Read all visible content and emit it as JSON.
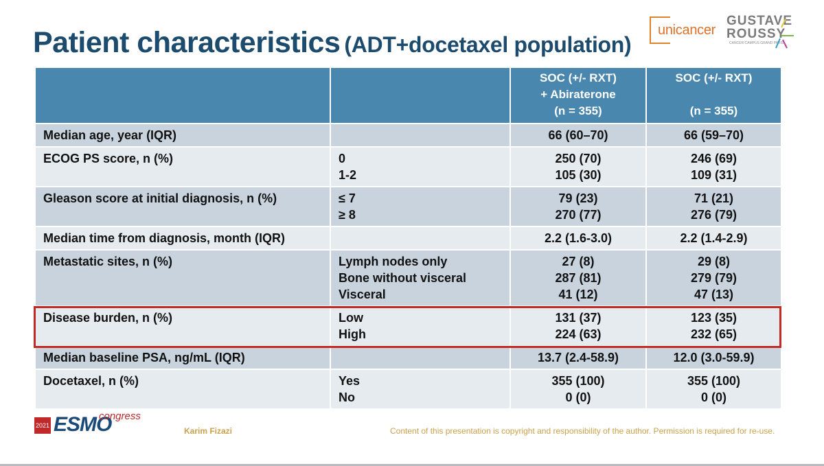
{
  "title": {
    "main": "Patient characteristics",
    "sub": "(ADT+docetaxel population)"
  },
  "logos": {
    "unicancer": "unicancer",
    "gustave_roussy_line1": "GUSTAVE",
    "gustave_roussy_line2": "ROUSSY",
    "gustave_roussy_line3": "CANCER CAMPUS GRAND PARIS"
  },
  "table": {
    "headers": [
      [],
      [],
      [
        "SOC (+/- RXT)",
        "+ Abiraterone",
        "(n = 355)"
      ],
      [
        "SOC (+/- RXT)",
        "",
        "(n = 355)"
      ]
    ],
    "rows": [
      {
        "label": "Median age, year (IQR)",
        "sub": [
          ""
        ],
        "arm1": [
          "66 (60–70)"
        ],
        "arm2": [
          "66 (59–70)"
        ]
      },
      {
        "label": "ECOG PS score, n (%)",
        "sub": [
          "0",
          "1-2"
        ],
        "arm1": [
          "250 (70)",
          "105 (30)"
        ],
        "arm2": [
          "246 (69)",
          "109 (31)"
        ]
      },
      {
        "label": "Gleason score at initial diagnosis, n (%)",
        "sub": [
          "≤ 7",
          "≥ 8"
        ],
        "arm1": [
          "79 (23)",
          "270 (77)"
        ],
        "arm2": [
          "71 (21)",
          "276 (79)"
        ]
      },
      {
        "label": "Median time from diagnosis, month (IQR)",
        "sub": [
          ""
        ],
        "arm1": [
          "2.2 (1.6-3.0)"
        ],
        "arm2": [
          "2.2 (1.4-2.9)"
        ]
      },
      {
        "label": "Metastatic sites, n (%)",
        "sub": [
          "Lymph nodes only",
          "Bone without visceral",
          "Visceral"
        ],
        "arm1": [
          "27 (8)",
          "287 (81)",
          "41 (12)"
        ],
        "arm2": [
          "29 (8)",
          "279 (79)",
          "47 (13)"
        ]
      },
      {
        "label": "Disease burden, n (%)",
        "sub": [
          "Low",
          "High"
        ],
        "arm1": [
          "131 (37)",
          "224 (63)"
        ],
        "arm2": [
          "123 (35)",
          "232 (65)"
        ]
      },
      {
        "label": "Median baseline PSA, ng/mL (IQR)",
        "sub": [
          ""
        ],
        "arm1": [
          "13.7 (2.4-58.9)"
        ],
        "arm2": [
          "12.0 (3.0-59.9)"
        ]
      },
      {
        "label": "Docetaxel, n (%)",
        "sub": [
          "Yes",
          "No"
        ],
        "arm1": [
          "355 (100)",
          "0 (0)"
        ],
        "arm2": [
          "355 (100)",
          "0 (0)"
        ]
      }
    ]
  },
  "footer": {
    "esmo_year": "2021",
    "esmo_word": "ESMO",
    "esmo_congress": "congress",
    "author": "Karim Fizazi",
    "copyright": "Content of this presentation is copyright and responsibility of the author. Permission is required for re-use."
  },
  "colors": {
    "title": "#1c4b6e",
    "header_bg": "#4a87ae",
    "row_odd": "#c8d3de",
    "row_even": "#e6ebf0",
    "highlight": "#c42a24",
    "footer_text": "#c9a14a"
  }
}
